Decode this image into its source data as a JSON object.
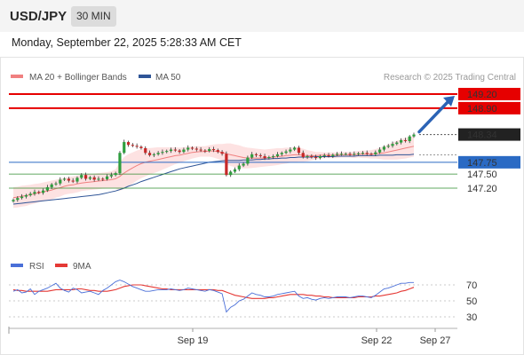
{
  "header": {
    "symbol": "USD/JPY",
    "timeframe": "30 MIN",
    "datetime": "Monday, September 22, 2025 5:28:33 AM CET"
  },
  "colors": {
    "resistance": "#e60000",
    "support": "#2a6ac4",
    "target": "#2e8b2e",
    "candle_up": "#2e9e3e",
    "candle_down": "#c62828",
    "ma20": "#f08080",
    "bollinger_fill": "#fde2e2",
    "ma50": "#2f5597",
    "rsi": "#4a6fd8",
    "rsi_ma": "#e53935",
    "arrow": "#2b63b5"
  },
  "chart_data": [
    {
      "type": "candlestick",
      "legend": [
        {
          "label": "MA 20 + Bollinger Bands",
          "color": "#f08080"
        },
        {
          "label": "MA 50",
          "color": "#2f5597"
        }
      ],
      "credit": "Research © 2025 Trading Central",
      "x_ticks": [
        "Sep 19",
        "Sep 22",
        "Sep 27"
      ],
      "price_levels": [
        {
          "label": "149.20",
          "value": 149.2,
          "kind": "resistance",
          "boxed": true
        },
        {
          "label": "148.90",
          "value": 148.9,
          "kind": "resistance",
          "boxed": true
        },
        {
          "label": "148.34",
          "value": 148.34,
          "kind": "last",
          "boxed": true
        },
        {
          "label": "147.75",
          "value": 147.75,
          "kind": "support",
          "boxed": true
        },
        {
          "label": "147.50",
          "value": 147.5,
          "kind": "target",
          "boxed": false
        },
        {
          "label": "147.20",
          "value": 147.2,
          "kind": "target",
          "boxed": false
        }
      ],
      "close": [
        146.95,
        146.99,
        147.02,
        147.05,
        147.08,
        147.12,
        147.1,
        147.15,
        147.22,
        147.28,
        147.3,
        147.38,
        147.4,
        147.36,
        147.34,
        147.42,
        147.48,
        147.4,
        147.43,
        147.38,
        147.4,
        147.39,
        147.45,
        147.48,
        147.52,
        147.95,
        148.18,
        148.12,
        148.1,
        148.08,
        148.05,
        147.95,
        147.9,
        147.92,
        147.95,
        147.97,
        147.99,
        148.02,
        148.0,
        147.97,
        148.02,
        148.06,
        148.04,
        148.02,
        148.0,
        147.99,
        148.03,
        148.01,
        147.97,
        147.93,
        147.48,
        147.55,
        147.6,
        147.68,
        147.72,
        147.85,
        147.92,
        147.9,
        147.88,
        147.84,
        147.86,
        147.88,
        147.92,
        147.95,
        147.98,
        148.02,
        148.06,
        147.95,
        147.86,
        147.88,
        147.86,
        147.84,
        147.88,
        147.9,
        147.88,
        147.91,
        147.93,
        147.93,
        147.93,
        147.92,
        147.93,
        147.94,
        147.95,
        147.93,
        147.92,
        147.96,
        148.02,
        148.08,
        148.1,
        148.14,
        148.17,
        148.22,
        148.2,
        148.3,
        148.34
      ],
      "open_first": 146.92,
      "ma20": [
        147.0,
        147.01,
        147.03,
        147.04,
        147.06,
        147.08,
        147.1,
        147.12,
        147.14,
        147.16,
        147.19,
        147.21,
        147.24,
        147.26,
        147.27,
        147.29,
        147.31,
        147.32,
        147.33,
        147.34,
        147.35,
        147.36,
        147.37,
        147.38,
        147.4,
        147.45,
        147.52,
        147.58,
        147.63,
        147.68,
        147.72,
        147.75,
        147.77,
        147.79,
        147.81,
        147.83,
        147.85,
        147.87,
        147.89,
        147.9,
        147.92,
        147.94,
        147.96,
        147.97,
        147.98,
        147.98,
        147.99,
        147.99,
        147.98,
        147.96,
        147.93,
        147.91,
        147.89,
        147.87,
        147.85,
        147.84,
        147.84,
        147.84,
        147.84,
        147.84,
        147.85,
        147.86,
        147.87,
        147.88,
        147.89,
        147.9,
        147.91,
        147.91,
        147.9,
        147.89,
        147.89,
        147.89,
        147.9,
        147.9,
        147.9,
        147.9,
        147.9,
        147.91,
        147.91,
        147.91,
        147.91,
        147.92,
        147.92,
        147.92,
        147.92,
        147.93,
        147.94,
        147.95,
        147.97,
        147.99,
        148.01,
        148.03,
        148.05,
        148.07,
        148.09
      ],
      "bb_width": [
        0.22,
        0.22,
        0.22,
        0.22,
        0.21,
        0.21,
        0.2,
        0.2,
        0.2,
        0.2,
        0.19,
        0.19,
        0.18,
        0.18,
        0.18,
        0.18,
        0.17,
        0.17,
        0.17,
        0.17,
        0.17,
        0.17,
        0.17,
        0.18,
        0.2,
        0.3,
        0.34,
        0.34,
        0.33,
        0.32,
        0.31,
        0.3,
        0.28,
        0.27,
        0.26,
        0.24,
        0.22,
        0.2,
        0.18,
        0.16,
        0.15,
        0.14,
        0.13,
        0.12,
        0.11,
        0.11,
        0.12,
        0.14,
        0.16,
        0.18,
        0.22,
        0.24,
        0.24,
        0.24,
        0.23,
        0.22,
        0.21,
        0.2,
        0.19,
        0.18,
        0.18,
        0.18,
        0.18,
        0.17,
        0.17,
        0.16,
        0.16,
        0.15,
        0.14,
        0.12,
        0.1,
        0.08,
        0.07,
        0.06,
        0.06,
        0.06,
        0.06,
        0.06,
        0.06,
        0.06,
        0.07,
        0.07,
        0.08,
        0.08,
        0.09,
        0.1,
        0.12,
        0.14,
        0.16,
        0.18,
        0.2,
        0.21,
        0.22,
        0.22,
        0.22
      ],
      "ma50": [
        146.86,
        146.87,
        146.88,
        146.89,
        146.9,
        146.91,
        146.92,
        146.93,
        146.94,
        146.95,
        146.96,
        146.97,
        146.98,
        146.99,
        147.0,
        147.01,
        147.02,
        147.03,
        147.04,
        147.05,
        147.06,
        147.08,
        147.1,
        147.12,
        147.14,
        147.17,
        147.2,
        147.24,
        147.27,
        147.3,
        147.34,
        147.37,
        147.4,
        147.43,
        147.46,
        147.49,
        147.52,
        147.55,
        147.58,
        147.61,
        147.63,
        147.65,
        147.67,
        147.69,
        147.71,
        147.73,
        147.75,
        147.76,
        147.77,
        147.78,
        147.79,
        147.79,
        147.79,
        147.79,
        147.8,
        147.8,
        147.8,
        147.81,
        147.81,
        147.82,
        147.82,
        147.83,
        147.83,
        147.84,
        147.84,
        147.85,
        147.85,
        147.86,
        147.86,
        147.86,
        147.86,
        147.87,
        147.87,
        147.87,
        147.87,
        147.87,
        147.88,
        147.88,
        147.88,
        147.88,
        147.88,
        147.89,
        147.89,
        147.89,
        147.89,
        147.89,
        147.9,
        147.9,
        147.9,
        147.9,
        147.91,
        147.91,
        147.91,
        147.91,
        147.92
      ],
      "projection": {
        "from": 148.34,
        "to": 149.2
      }
    },
    {
      "type": "line",
      "legend": [
        {
          "label": "RSI",
          "color": "#4a6fd8"
        },
        {
          "label": "9MA",
          "color": "#e53935"
        }
      ],
      "y_ticks": [
        "70",
        "50",
        "30"
      ],
      "levels": [
        70,
        50,
        30
      ],
      "series": [
        {
          "name": "RSI",
          "values": [
            62,
            64,
            60,
            61,
            65,
            58,
            62,
            64,
            66,
            69,
            72,
            66,
            63,
            61,
            66,
            64,
            60,
            61,
            62,
            60,
            58,
            63,
            66,
            70,
            74,
            76,
            74,
            71,
            68,
            66,
            64,
            62,
            62,
            63,
            64,
            64,
            64,
            65,
            64,
            63,
            64,
            66,
            65,
            64,
            63,
            62,
            64,
            63,
            61,
            59,
            36,
            42,
            45,
            50,
            52,
            56,
            60,
            58,
            57,
            55,
            55,
            56,
            58,
            59,
            60,
            61,
            62,
            56,
            53,
            54,
            52,
            51,
            53,
            54,
            53,
            54,
            55,
            55,
            55,
            54,
            55,
            56,
            56,
            55,
            54,
            57,
            61,
            65,
            66,
            68,
            70,
            72,
            72,
            73,
            73
          ]
        },
        {
          "name": "9MA",
          "values": [
            64,
            63,
            63,
            62,
            62,
            62,
            62,
            62,
            62,
            63,
            64,
            64,
            64,
            64,
            64,
            65,
            65,
            64,
            63,
            63,
            62,
            62,
            62,
            63,
            64,
            66,
            68,
            69,
            70,
            70,
            70,
            69,
            68,
            67,
            66,
            65,
            65,
            64,
            64,
            64,
            64,
            64,
            64,
            64,
            64,
            64,
            64,
            64,
            63,
            63,
            61,
            59,
            57,
            56,
            55,
            54,
            53,
            53,
            53,
            53,
            54,
            54,
            55,
            56,
            57,
            58,
            58,
            58,
            58,
            57,
            57,
            56,
            56,
            55,
            55,
            54,
            54,
            54,
            54,
            54,
            54,
            55,
            55,
            55,
            55,
            56,
            56,
            57,
            58,
            59,
            60,
            62,
            63,
            65,
            67
          ]
        }
      ]
    }
  ]
}
